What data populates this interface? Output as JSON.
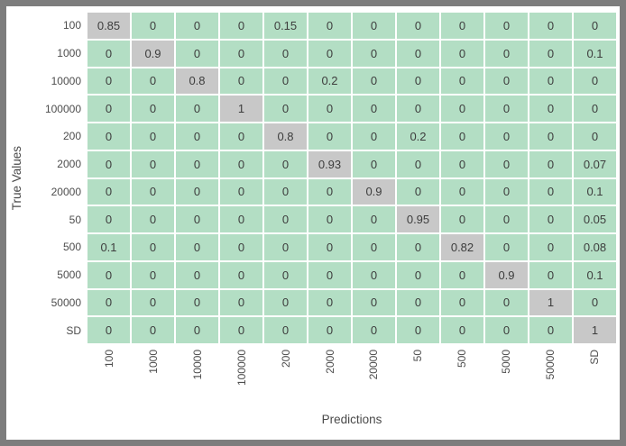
{
  "figure": {
    "background": "#ffffff",
    "frame_color": "#7d7d7d"
  },
  "chart_data": {
    "type": "heatmap",
    "title": "",
    "xlabel": "Predictions",
    "ylabel": "True Values",
    "x_categories": [
      "100",
      "1000",
      "10000",
      "100000",
      "200",
      "2000",
      "20000",
      "50",
      "500",
      "5000",
      "50000",
      "SD"
    ],
    "y_categories": [
      "100",
      "1000",
      "10000",
      "100000",
      "200",
      "2000",
      "20000",
      "50",
      "500",
      "5000",
      "50000",
      "SD"
    ],
    "matrix": [
      [
        0.85,
        0,
        0,
        0,
        0.15,
        0,
        0,
        0,
        0,
        0,
        0,
        0
      ],
      [
        0,
        0.9,
        0,
        0,
        0,
        0,
        0,
        0,
        0,
        0,
        0,
        0.1
      ],
      [
        0,
        0,
        0.8,
        0,
        0,
        0.2,
        0,
        0,
        0,
        0,
        0,
        0
      ],
      [
        0,
        0,
        0,
        1,
        0,
        0,
        0,
        0,
        0,
        0,
        0,
        0
      ],
      [
        0,
        0,
        0,
        0,
        0.8,
        0,
        0,
        0.2,
        0,
        0,
        0,
        0
      ],
      [
        0,
        0,
        0,
        0,
        0,
        0.93,
        0,
        0,
        0,
        0,
        0,
        0.07
      ],
      [
        0,
        0,
        0,
        0,
        0,
        0,
        0.9,
        0,
        0,
        0,
        0,
        0.1
      ],
      [
        0,
        0,
        0,
        0,
        0,
        0,
        0,
        0.95,
        0,
        0,
        0,
        0.05
      ],
      [
        0.1,
        0,
        0,
        0,
        0,
        0,
        0,
        0,
        0.82,
        0,
        0,
        0.08
      ],
      [
        0,
        0,
        0,
        0,
        0,
        0,
        0,
        0,
        0,
        0.9,
        0,
        0.1
      ],
      [
        0,
        0,
        0,
        0,
        0,
        0,
        0,
        0,
        0,
        0,
        1,
        0
      ],
      [
        0,
        0,
        0,
        0,
        0,
        0,
        0,
        0,
        0,
        0,
        0,
        1
      ]
    ],
    "colors": {
      "cell_low": "#b3dec4",
      "cell_high": "#c8c8c8",
      "high_threshold": 0.5,
      "cell_text": "#3d3d3d",
      "tick_text": "#4d4d4d",
      "label_text": "#4a4a4a",
      "grid_gap": "#ffffff"
    },
    "layout": {
      "legend": "none",
      "rows": 12,
      "cols": 12,
      "value_range": [
        0,
        1
      ]
    }
  }
}
